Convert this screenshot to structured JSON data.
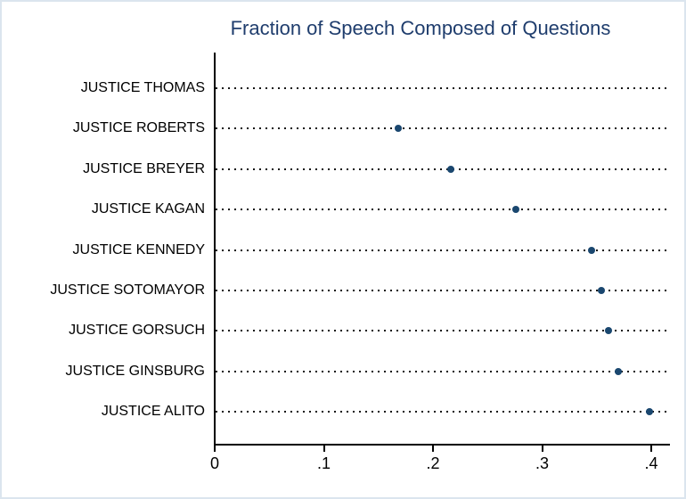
{
  "figure": {
    "title": "Fraction of Speech Composed of Questions",
    "colors": {
      "title": "#1f3d6d",
      "marker": "#1a476f",
      "axis": "#000000",
      "gridline": "#141414",
      "border": "#dbe5ee",
      "background": "#ffffff",
      "label": "#000000"
    }
  },
  "chart_data": {
    "type": "scatter",
    "subtype": "horizontal-dot-plot",
    "title": "Fraction of Speech Composed of Questions",
    "categories": [
      "JUSTICE THOMAS",
      "JUSTICE ROBERTS",
      "JUSTICE BREYER",
      "JUSTICE KAGAN",
      "JUSTICE KENNEDY",
      "JUSTICE SOTOMAYOR",
      "JUSTICE GORSUCH",
      "JUSTICE GINSBURG",
      "JUSTICE ALITO"
    ],
    "values": [
      null,
      0.168,
      0.216,
      0.276,
      0.345,
      0.354,
      0.361,
      0.37,
      0.398
    ],
    "xlabel": "",
    "ylabel": "",
    "xlim": [
      0,
      0.417
    ],
    "x_tick_labels": [
      "0",
      ".1",
      ".2",
      ".3",
      ".4"
    ],
    "x_tick_values": [
      0,
      0.1,
      0.2,
      0.3,
      0.4
    ],
    "grid": "dotted horizontal line per category",
    "legend_position": "none"
  }
}
